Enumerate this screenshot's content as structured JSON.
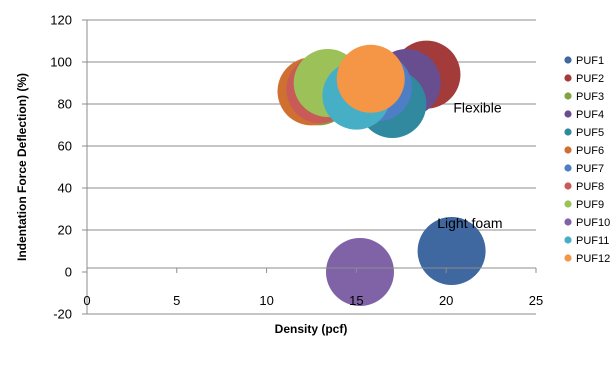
{
  "chart_data": {
    "type": "bubble",
    "xlabel": "Density (pcf)",
    "ylabel": "Indentation Force Deflection) (%)",
    "xlim": [
      0,
      25
    ],
    "ylim": [
      -20,
      120
    ],
    "x_ticks": [
      0,
      5,
      10,
      15,
      20,
      25
    ],
    "y_ticks": [
      -20,
      0,
      20,
      40,
      60,
      80,
      100,
      120
    ],
    "grid": "horizontal",
    "legend_position": "right",
    "series": [
      {
        "name": "PUF1",
        "x": 20.3,
        "y": 10,
        "size": 1.0,
        "color": "#3F67A0"
      },
      {
        "name": "PUF2",
        "x": 18.9,
        "y": 94,
        "size": 1.0,
        "color": "#A23B3A"
      },
      {
        "name": "PUF3",
        "x": 12.9,
        "y": 86,
        "size": 1.0,
        "color": "#81A440"
      },
      {
        "name": "PUF4",
        "x": 17.8,
        "y": 90,
        "size": 1.0,
        "color": "#684E8F"
      },
      {
        "name": "PUF5",
        "x": 17.0,
        "y": 80,
        "size": 1.0,
        "color": "#31899F"
      },
      {
        "name": "PUF6",
        "x": 12.5,
        "y": 86,
        "size": 1.0,
        "color": "#D06F32"
      },
      {
        "name": "PUF7",
        "x": 16.2,
        "y": 88,
        "size": 1.0,
        "color": "#4E7EC5"
      },
      {
        "name": "PUF8",
        "x": 13.0,
        "y": 87,
        "size": 1.0,
        "color": "#C85A58"
      },
      {
        "name": "PUF9",
        "x": 13.4,
        "y": 90,
        "size": 1.0,
        "color": "#9BC158"
      },
      {
        "name": "PUF10",
        "x": 15.2,
        "y": 0,
        "size": 1.0,
        "color": "#8063A6"
      },
      {
        "name": "PUF11",
        "x": 15.0,
        "y": 84,
        "size": 1.0,
        "color": "#46AFC6"
      },
      {
        "name": "PUF12",
        "x": 15.8,
        "y": 92,
        "size": 1.0,
        "color": "#F49645"
      }
    ],
    "annotations": [
      {
        "text": "Flexible",
        "x": 20.4,
        "y": 76
      },
      {
        "text": "Light foam",
        "x": 19.5,
        "y": 21
      }
    ]
  }
}
